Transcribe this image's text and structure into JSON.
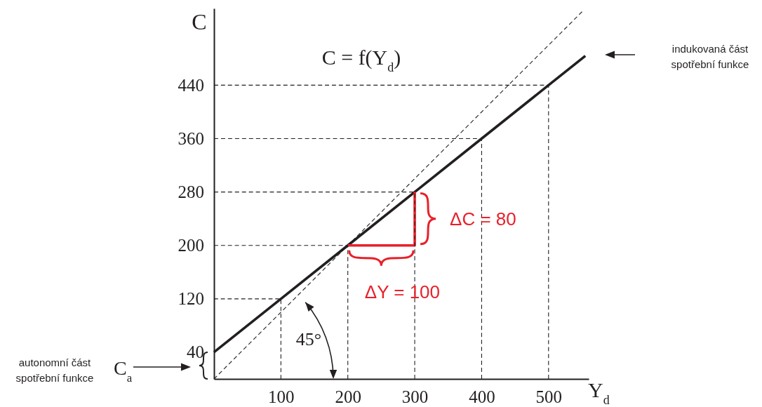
{
  "chart_data": {
    "type": "line",
    "xlabel": "Y$_{d}$",
    "ylabel": "C",
    "xlim": [
      0,
      560
    ],
    "ylim": [
      0,
      555
    ],
    "xticks": [
      100,
      200,
      300,
      400,
      500
    ],
    "yticks": [
      40,
      120,
      200,
      280,
      360,
      440
    ],
    "series": [
      {
        "color": "#231f20",
        "x": [
          0,
          100,
          200,
          300,
          400,
          500,
          555
        ],
        "values": [
          40,
          120,
          200,
          280,
          360,
          440,
          484
        ]
      },
      {
        "color": "#231f20",
        "x": [
          0,
          550
        ],
        "values": [
          0,
          550
        ],
        "line_style": "dashed"
      },
      {
        "color": "#e8202a",
        "x": [
          200,
          300,
          300
        ],
        "values": [
          200,
          200,
          280
        ]
      },
      {
        "color": "#231f20",
        "x": [
          0,
          100,
          100
        ],
        "values": [
          120,
          120,
          0
        ],
        "line_style": "dashed"
      },
      {
        "color": "#231f20",
        "x": [
          0,
          200,
          200
        ],
        "values": [
          200,
          200,
          0
        ],
        "line_style": "dashed"
      },
      {
        "color": "#231f20",
        "x": [
          0,
          300,
          300
        ],
        "values": [
          280,
          280,
          0
        ],
        "line_style": "dashed"
      },
      {
        "color": "#231f20",
        "x": [
          0,
          400,
          400
        ],
        "values": [
          360,
          360,
          0
        ],
        "line_style": "dashed"
      },
      {
        "color": "#231f20",
        "x": [
          0,
          500,
          500
        ],
        "values": [
          440,
          440,
          0
        ],
        "line_style": "dashed"
      }
    ],
    "annotations": [
      "C = f(Y$_{d}$)",
      {
        "text": "ΔC = 80",
        "x": 300,
        "y": 240
      },
      {
        "text": "ΔY = 100",
        "x": 250,
        "y": 200
      },
      "45°",
      "indukovaná část\nspotřební funkce",
      "autonomní část\nspotřební funkce",
      "C$_{a}$"
    ]
  }
}
